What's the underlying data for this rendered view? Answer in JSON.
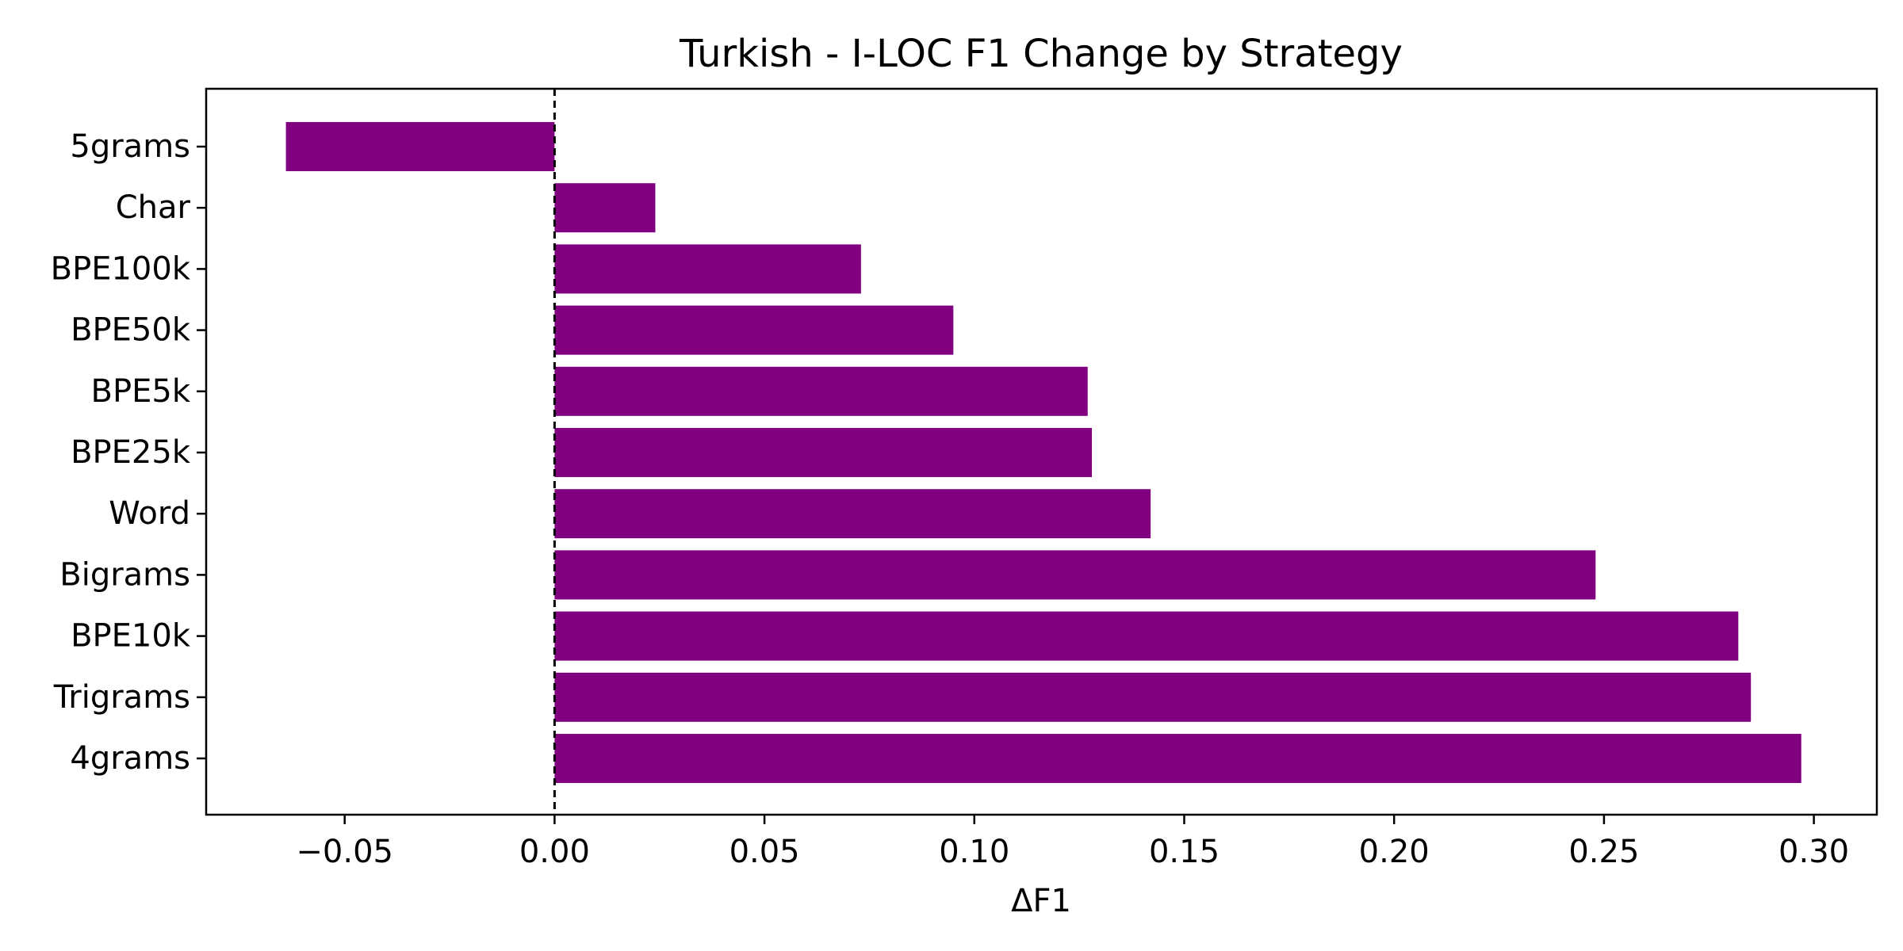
{
  "chart_data": {
    "type": "bar",
    "orientation": "horizontal",
    "title": "Turkish - I-LOC F1 Change by Strategy",
    "xlabel": "ΔF1",
    "ylabel": "",
    "categories": [
      "5grams",
      "Char",
      "BPE100k",
      "BPE50k",
      "BPE5k",
      "BPE25k",
      "Word",
      "Bigrams",
      "BPE10k",
      "Trigrams",
      "4grams"
    ],
    "values": [
      -0.064,
      0.024,
      0.073,
      0.095,
      0.127,
      0.128,
      0.142,
      0.248,
      0.282,
      0.285,
      0.297
    ],
    "xlim": [
      -0.083,
      0.315
    ],
    "xticks": [
      -0.05,
      0.0,
      0.05,
      0.1,
      0.15,
      0.2,
      0.25,
      0.3
    ],
    "xtick_labels": [
      "−0.05",
      "0.00",
      "0.05",
      "0.10",
      "0.15",
      "0.20",
      "0.25",
      "0.30"
    ],
    "reference_line": {
      "x": 0,
      "style": "dashed",
      "color": "#000000"
    },
    "bar_color": "#800080",
    "grid": false,
    "legend": "none"
  }
}
